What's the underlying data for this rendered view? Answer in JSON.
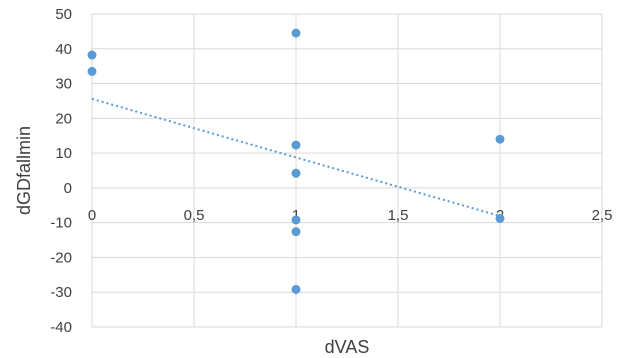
{
  "chart_data": {
    "type": "scatter",
    "title": "",
    "xlabel": "dVAS",
    "ylabel": "dGDfallmin",
    "xlim": [
      0,
      2.5
    ],
    "ylim": [
      -40,
      50
    ],
    "x_ticks": [
      0,
      0.5,
      1,
      1.5,
      2,
      2.5
    ],
    "x_tick_labels": [
      "0",
      "0,5",
      "1",
      "1,5",
      "2",
      "2,5"
    ],
    "y_ticks": [
      -40,
      -30,
      -20,
      -10,
      0,
      10,
      20,
      30,
      40,
      50
    ],
    "y_tick_labels": [
      "-40",
      "-30",
      "-20",
      "-10",
      "0",
      "10",
      "20",
      "30",
      "40",
      "50"
    ],
    "grid": true,
    "legend": "none",
    "series": [
      {
        "marker_color": "#5b9bd5",
        "points": [
          {
            "x": 0,
            "y": 38.2
          },
          {
            "x": 0,
            "y": 33.5
          },
          {
            "x": 1,
            "y": 44.5
          },
          {
            "x": 1,
            "y": 12.3
          },
          {
            "x": 1,
            "y": 4.2
          },
          {
            "x": 1,
            "y": -9.2
          },
          {
            "x": 1,
            "y": -12.6
          },
          {
            "x": 1,
            "y": -29.2
          },
          {
            "x": 2,
            "y": 14.0
          },
          {
            "x": 2,
            "y": -8.8
          }
        ]
      }
    ],
    "trendline": {
      "type": "linear",
      "style": "dotted",
      "color": "#5b9bd5",
      "x_range": [
        0,
        2
      ],
      "y_values": [
        25.6,
        -8.1
      ]
    }
  }
}
